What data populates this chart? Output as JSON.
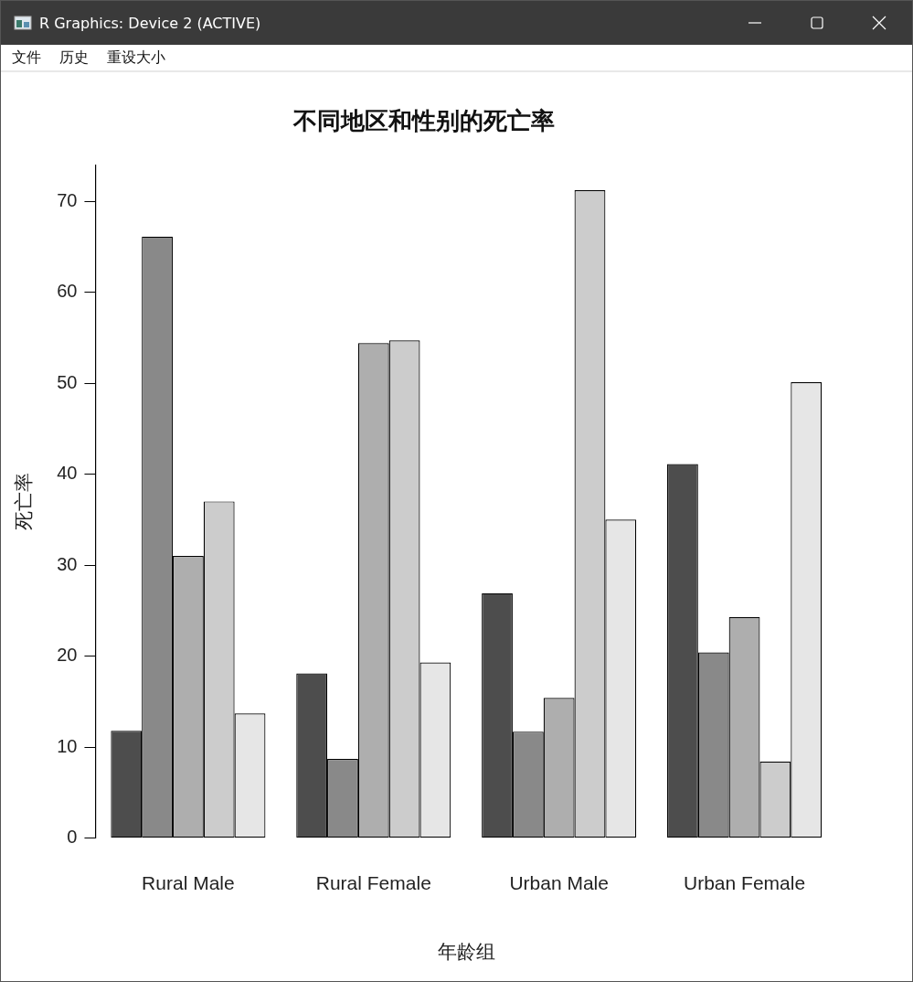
{
  "chart_data": {
    "type": "bar",
    "title": "不同地区和性别的死亡率",
    "xlabel": "年龄组",
    "ylabel": "死亡率",
    "annotations": [
      "R Graphics: Device 2 (ACTIVE)",
      "文件",
      "历史",
      "重设大小"
    ],
    "categories": [
      "Rural Male",
      "Rural Female",
      "Urban Male",
      "Urban Female"
    ],
    "series": [
      {
        "color": "#4d4d4d",
        "values": [
          11.8,
          18.1,
          26.9,
          41.1
        ]
      },
      {
        "color": "#898989",
        "values": [
          66.1,
          8.7,
          11.7,
          20.4
        ]
      },
      {
        "color": "#aeaeae",
        "values": [
          31.0,
          54.4,
          15.4,
          24.3
        ]
      },
      {
        "color": "#cccccc",
        "values": [
          37.0,
          54.7,
          71.2,
          8.4
        ]
      },
      {
        "color": "#e6e6e6",
        "values": [
          13.7,
          19.3,
          35.0,
          50.1
        ]
      }
    ],
    "ylim": [
      0,
      74
    ],
    "yticks": [
      0,
      10,
      20,
      30,
      40,
      50,
      60,
      70
    ],
    "grid": false,
    "legend": false
  }
}
